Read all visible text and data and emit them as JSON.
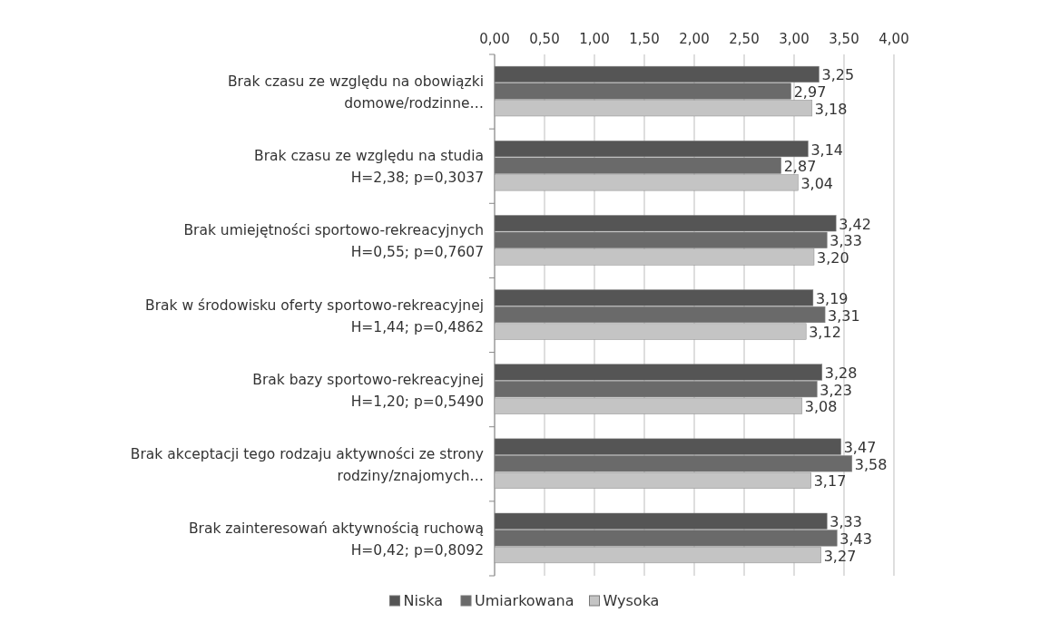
{
  "chart_data": {
    "type": "bar",
    "orientation": "horizontal",
    "categories": [
      "Brak czasu ze względu na obowiązki\ndomowe/rodzinne…",
      "Brak czasu ze względu na studia\nH=2,38;  p=0,3037",
      "Brak umiejętności sportowo-rekreacyjnych\nH=0,55;  p=0,7607",
      "Brak w środowisku oferty sportowo-rekreacyjnej\nH=1,44;  p=0,4862",
      "Brak bazy sportowo-rekreacyjnej\nH=1,20;  p=0,5490",
      "Brak akceptacji tego rodzaju aktywności ze strony\nrodziny/znajomych…",
      "Brak zainteresowań aktywnością ruchową\nH=0,42;  p=0,8092"
    ],
    "series": [
      {
        "name": "Niska",
        "color": "#555555",
        "values": [
          3.25,
          3.14,
          3.42,
          3.19,
          3.28,
          3.47,
          3.33
        ],
        "value_labels": [
          "3,25",
          "3,14",
          "3,42",
          "3,19",
          "3,28",
          "3,47",
          "3,33"
        ]
      },
      {
        "name": "Umiarkowana",
        "color": "#6a6a6a",
        "values": [
          2.97,
          2.87,
          3.33,
          3.31,
          3.23,
          3.58,
          3.43
        ],
        "value_labels": [
          "2,97",
          "2,87",
          "3,33",
          "3,31",
          "3,23",
          "3,58",
          "3,43"
        ]
      },
      {
        "name": "Wysoka",
        "color": "#c4c4c4",
        "values": [
          3.18,
          3.04,
          3.2,
          3.12,
          3.08,
          3.17,
          3.27
        ],
        "value_labels": [
          "3,18",
          "3,04",
          "3,20",
          "3,12",
          "3,08",
          "3,17",
          "3,27"
        ]
      }
    ],
    "xlim": [
      0,
      4
    ],
    "xticks": [
      {
        "value": 0,
        "label": "0,00"
      },
      {
        "value": 0.5,
        "label": "0,50"
      },
      {
        "value": 1,
        "label": "1,00"
      },
      {
        "value": 1.5,
        "label": "1,50"
      },
      {
        "value": 2,
        "label": "2,00"
      },
      {
        "value": 2.5,
        "label": "2,50"
      },
      {
        "value": 3,
        "label": "3,00"
      },
      {
        "value": 3.5,
        "label": "3,50"
      },
      {
        "value": 4,
        "label": "4,00"
      }
    ],
    "grid": "x",
    "legend": "bottom"
  }
}
